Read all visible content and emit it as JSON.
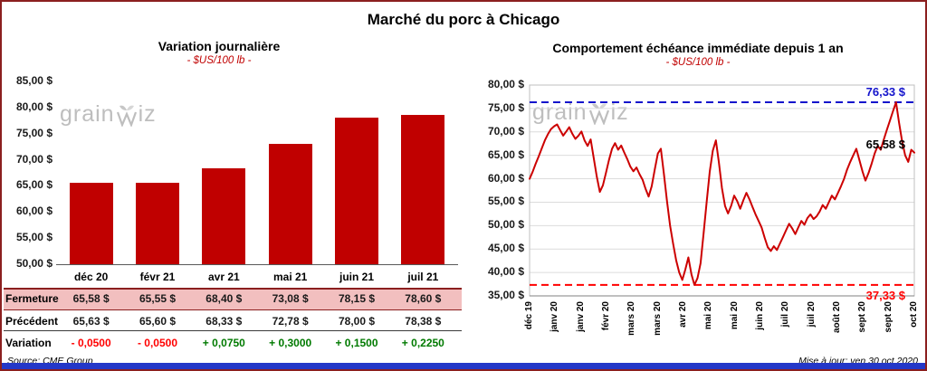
{
  "page": {
    "title": "Marché du porc à Chicago",
    "source": "Source: CME Group",
    "updated": "Mise à jour: ven 30 oct 2020",
    "watermark": {
      "pre": "grain",
      "post": "iz"
    }
  },
  "colors": {
    "bar": "#C00000",
    "line": "#CC0000",
    "high": "#1414CC",
    "low": "#FF0000",
    "accent_bar": "#2438C8",
    "frame_border": "#8B1F1F",
    "table_highlight": "#F2BFBF",
    "negative": "#FF0000",
    "positive": "#007A00"
  },
  "chart_data": [
    {
      "type": "bar",
      "title": "Variation journalière",
      "subtitle": "- $US/100 lb -",
      "categories": [
        "déc 20",
        "févr 21",
        "avr 21",
        "mai 21",
        "juin 21",
        "juil 21"
      ],
      "values": [
        65.58,
        65.55,
        68.4,
        73.08,
        78.15,
        78.6
      ],
      "ylim": [
        50,
        85
      ],
      "y_ticks": [
        "85,00 $",
        "80,00 $",
        "75,00 $",
        "70,00 $",
        "65,00 $",
        "60,00 $",
        "55,00 $",
        "50,00 $"
      ],
      "grid": false
    },
    {
      "type": "line",
      "title": "Comportement échéance immédiate depuis 1 an",
      "subtitle": "- $US/100 lb -",
      "x_ticks": [
        "déc 19",
        "janv 20",
        "janv 20",
        "févr 20",
        "mars 20",
        "mars 20",
        "avr 20",
        "mai 20",
        "mai 20",
        "juin 20",
        "juil 20",
        "juil 20",
        "août 20",
        "sept 20",
        "sept 20",
        "oct 20"
      ],
      "ylim": [
        35,
        80
      ],
      "y_ticks": [
        "80,00 $",
        "75,00 $",
        "70,00 $",
        "65,00 $",
        "60,00 $",
        "55,00 $",
        "50,00 $",
        "45,00 $",
        "40,00 $",
        "35,00 $"
      ],
      "grid": true,
      "high_line": {
        "value": 76.33,
        "label": "76,33 $"
      },
      "low_line": {
        "value": 37.33,
        "label": "37,33 $"
      },
      "last_point": {
        "value": 65.58,
        "label": "65,58 $"
      },
      "values": [
        60.0,
        61.5,
        63.2,
        64.8,
        66.5,
        68.2,
        69.5,
        70.6,
        71.2,
        71.6,
        70.4,
        69.2,
        70.1,
        71.0,
        69.6,
        68.5,
        69.2,
        70.1,
        68.2,
        67.0,
        68.4,
        64.5,
        60.5,
        57.2,
        58.6,
        61.2,
        64.0,
        66.4,
        67.6,
        66.2,
        67.1,
        65.6,
        64.2,
        62.6,
        61.6,
        62.4,
        61.0,
        59.8,
        57.8,
        56.2,
        58.4,
        62.0,
        65.4,
        66.4,
        61.0,
        55.2,
        50.0,
        46.2,
        42.6,
        40.0,
        38.4,
        40.6,
        43.2,
        39.6,
        37.33,
        38.8,
        42.0,
        48.5,
        55.0,
        61.5,
        66.0,
        68.2,
        63.5,
        58.0,
        54.2,
        52.6,
        54.2,
        56.4,
        55.2,
        53.6,
        55.4,
        57.0,
        55.6,
        54.0,
        52.4,
        51.0,
        49.6,
        47.4,
        45.4,
        44.6,
        45.6,
        44.8,
        46.2,
        47.6,
        49.0,
        50.4,
        49.4,
        48.2,
        49.6,
        51.0,
        50.2,
        51.6,
        52.4,
        51.4,
        52.0,
        53.0,
        54.4,
        53.6,
        55.0,
        56.4,
        55.6,
        57.0,
        58.4,
        60.0,
        62.0,
        63.6,
        65.0,
        66.4,
        64.0,
        61.6,
        59.6,
        61.2,
        63.2,
        65.4,
        67.0,
        66.2,
        68.4,
        70.4,
        72.4,
        74.4,
        76.33,
        72.0,
        68.0,
        65.0,
        63.6,
        66.2,
        65.58
      ]
    }
  ],
  "table": {
    "rows": [
      {
        "label": "Fermeture",
        "values": [
          "65,58 $",
          "65,55 $",
          "68,40 $",
          "73,08 $",
          "78,15 $",
          "78,60 $"
        ],
        "highlight": true
      },
      {
        "label": "Précédent",
        "values": [
          "65,63 $",
          "65,60 $",
          "68,33 $",
          "72,78 $",
          "78,00 $",
          "78,38 $"
        ],
        "highlight": false
      },
      {
        "label": "Variation",
        "values": [
          "- 0,0500",
          "- 0,0500",
          "+ 0,0750",
          "+ 0,3000",
          "+ 0,1500",
          "+ 0,2250"
        ],
        "signs": [
          "neg",
          "neg",
          "pos",
          "pos",
          "pos",
          "pos"
        ],
        "highlight": false
      }
    ]
  }
}
